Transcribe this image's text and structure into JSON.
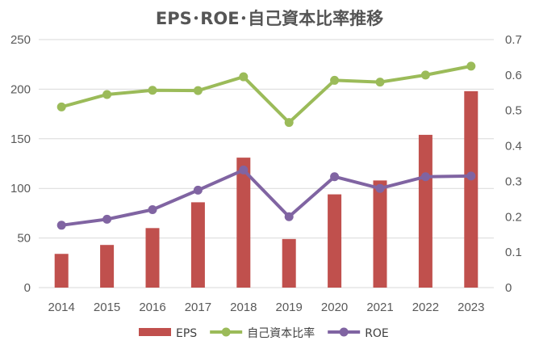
{
  "chart_data": {
    "type": "bar",
    "title": "EPS･ROE･自己資本比率推移",
    "categories": [
      "2014",
      "2015",
      "2016",
      "2017",
      "2018",
      "2019",
      "2020",
      "2021",
      "2022",
      "2023"
    ],
    "series": [
      {
        "name": "EPS",
        "kind": "bar",
        "axis": "left",
        "color": "#c0504d",
        "values": [
          34,
          43,
          60,
          86,
          131,
          49,
          94,
          108,
          154,
          198
        ]
      },
      {
        "name": "自己資本比率",
        "kind": "line",
        "axis": "right",
        "color": "#9bbb59",
        "values": [
          0.51,
          0.545,
          0.557,
          0.556,
          0.595,
          0.466,
          0.585,
          0.58,
          0.6,
          0.625
        ]
      },
      {
        "name": "ROE",
        "kind": "line",
        "axis": "right",
        "color": "#8064a2",
        "values": [
          0.176,
          0.193,
          0.22,
          0.275,
          0.332,
          0.2,
          0.313,
          0.28,
          0.313,
          0.315
        ]
      }
    ],
    "left_axis": {
      "min": 0,
      "max": 250,
      "ticks": [
        "0",
        "50",
        "100",
        "150",
        "200",
        "250"
      ]
    },
    "right_axis": {
      "min": 0,
      "max": 0.7,
      "ticks": [
        "0",
        "0.1",
        "0.2",
        "0.3",
        "0.4",
        "0.5",
        "0.6",
        "0.7"
      ]
    },
    "grid": true,
    "legend": {
      "position": "bottom",
      "entries": [
        "EPS",
        "自己資本比率",
        "ROE"
      ]
    }
  }
}
